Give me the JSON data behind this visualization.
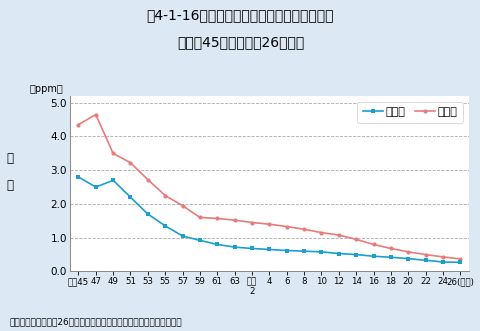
{
  "title_line1": "図4-1-16　一酸化炭素濃度の年平均値の推移",
  "title_line2": "（昭和45年度～平成26年度）",
  "ylabel_top": "濃",
  "ylabel_bottom": "度",
  "yunits": "（ppm）",
  "xlabel_bottom": "資料：環境省「平成26年度大気汚染状況について（報道発表資料）」",
  "bg_color": "#dce9f5",
  "plot_bg_color": "#ffffff",
  "ylim": [
    0.0,
    5.2
  ],
  "yticks": [
    0.0,
    1.0,
    2.0,
    3.0,
    4.0,
    5.0
  ],
  "xtick_labels": [
    "昭和45",
    "47",
    "49",
    "51",
    "53",
    "55",
    "57",
    "59",
    "61",
    "63",
    "平成\n2",
    "4",
    "6",
    "8",
    "10",
    "12",
    "14",
    "16",
    "18",
    "20",
    "22",
    "24",
    "26(年度)"
  ],
  "legend_labels_order": [
    "一般局",
    "自排局"
  ],
  "general_color": "#1b9fcc",
  "jihai_color": "#e87b7b",
  "general_marker": "s",
  "jihai_marker": "o",
  "x_indices": [
    0,
    1,
    2,
    3,
    4,
    5,
    6,
    7,
    8,
    9,
    10,
    11,
    12,
    13,
    14,
    15,
    16,
    17,
    18,
    19,
    20,
    21,
    22
  ],
  "general_values": [
    2.8,
    2.5,
    2.7,
    2.2,
    1.7,
    1.35,
    1.05,
    0.92,
    0.8,
    0.72,
    0.68,
    0.65,
    0.62,
    0.6,
    0.58,
    0.53,
    0.5,
    0.45,
    0.42,
    0.38,
    0.33,
    0.28,
    0.27
  ],
  "jihai_values": [
    4.35,
    4.65,
    3.5,
    3.22,
    2.72,
    2.25,
    1.95,
    1.6,
    1.57,
    1.52,
    1.45,
    1.4,
    1.33,
    1.25,
    1.15,
    1.08,
    0.95,
    0.8,
    0.68,
    0.58,
    0.5,
    0.43,
    0.37
  ],
  "grid_color": "#aaaaaa",
  "title_fontsize": 10,
  "axis_fontsize": 7.5,
  "legend_fontsize": 8,
  "marker_size": 3,
  "line_width": 1.2
}
